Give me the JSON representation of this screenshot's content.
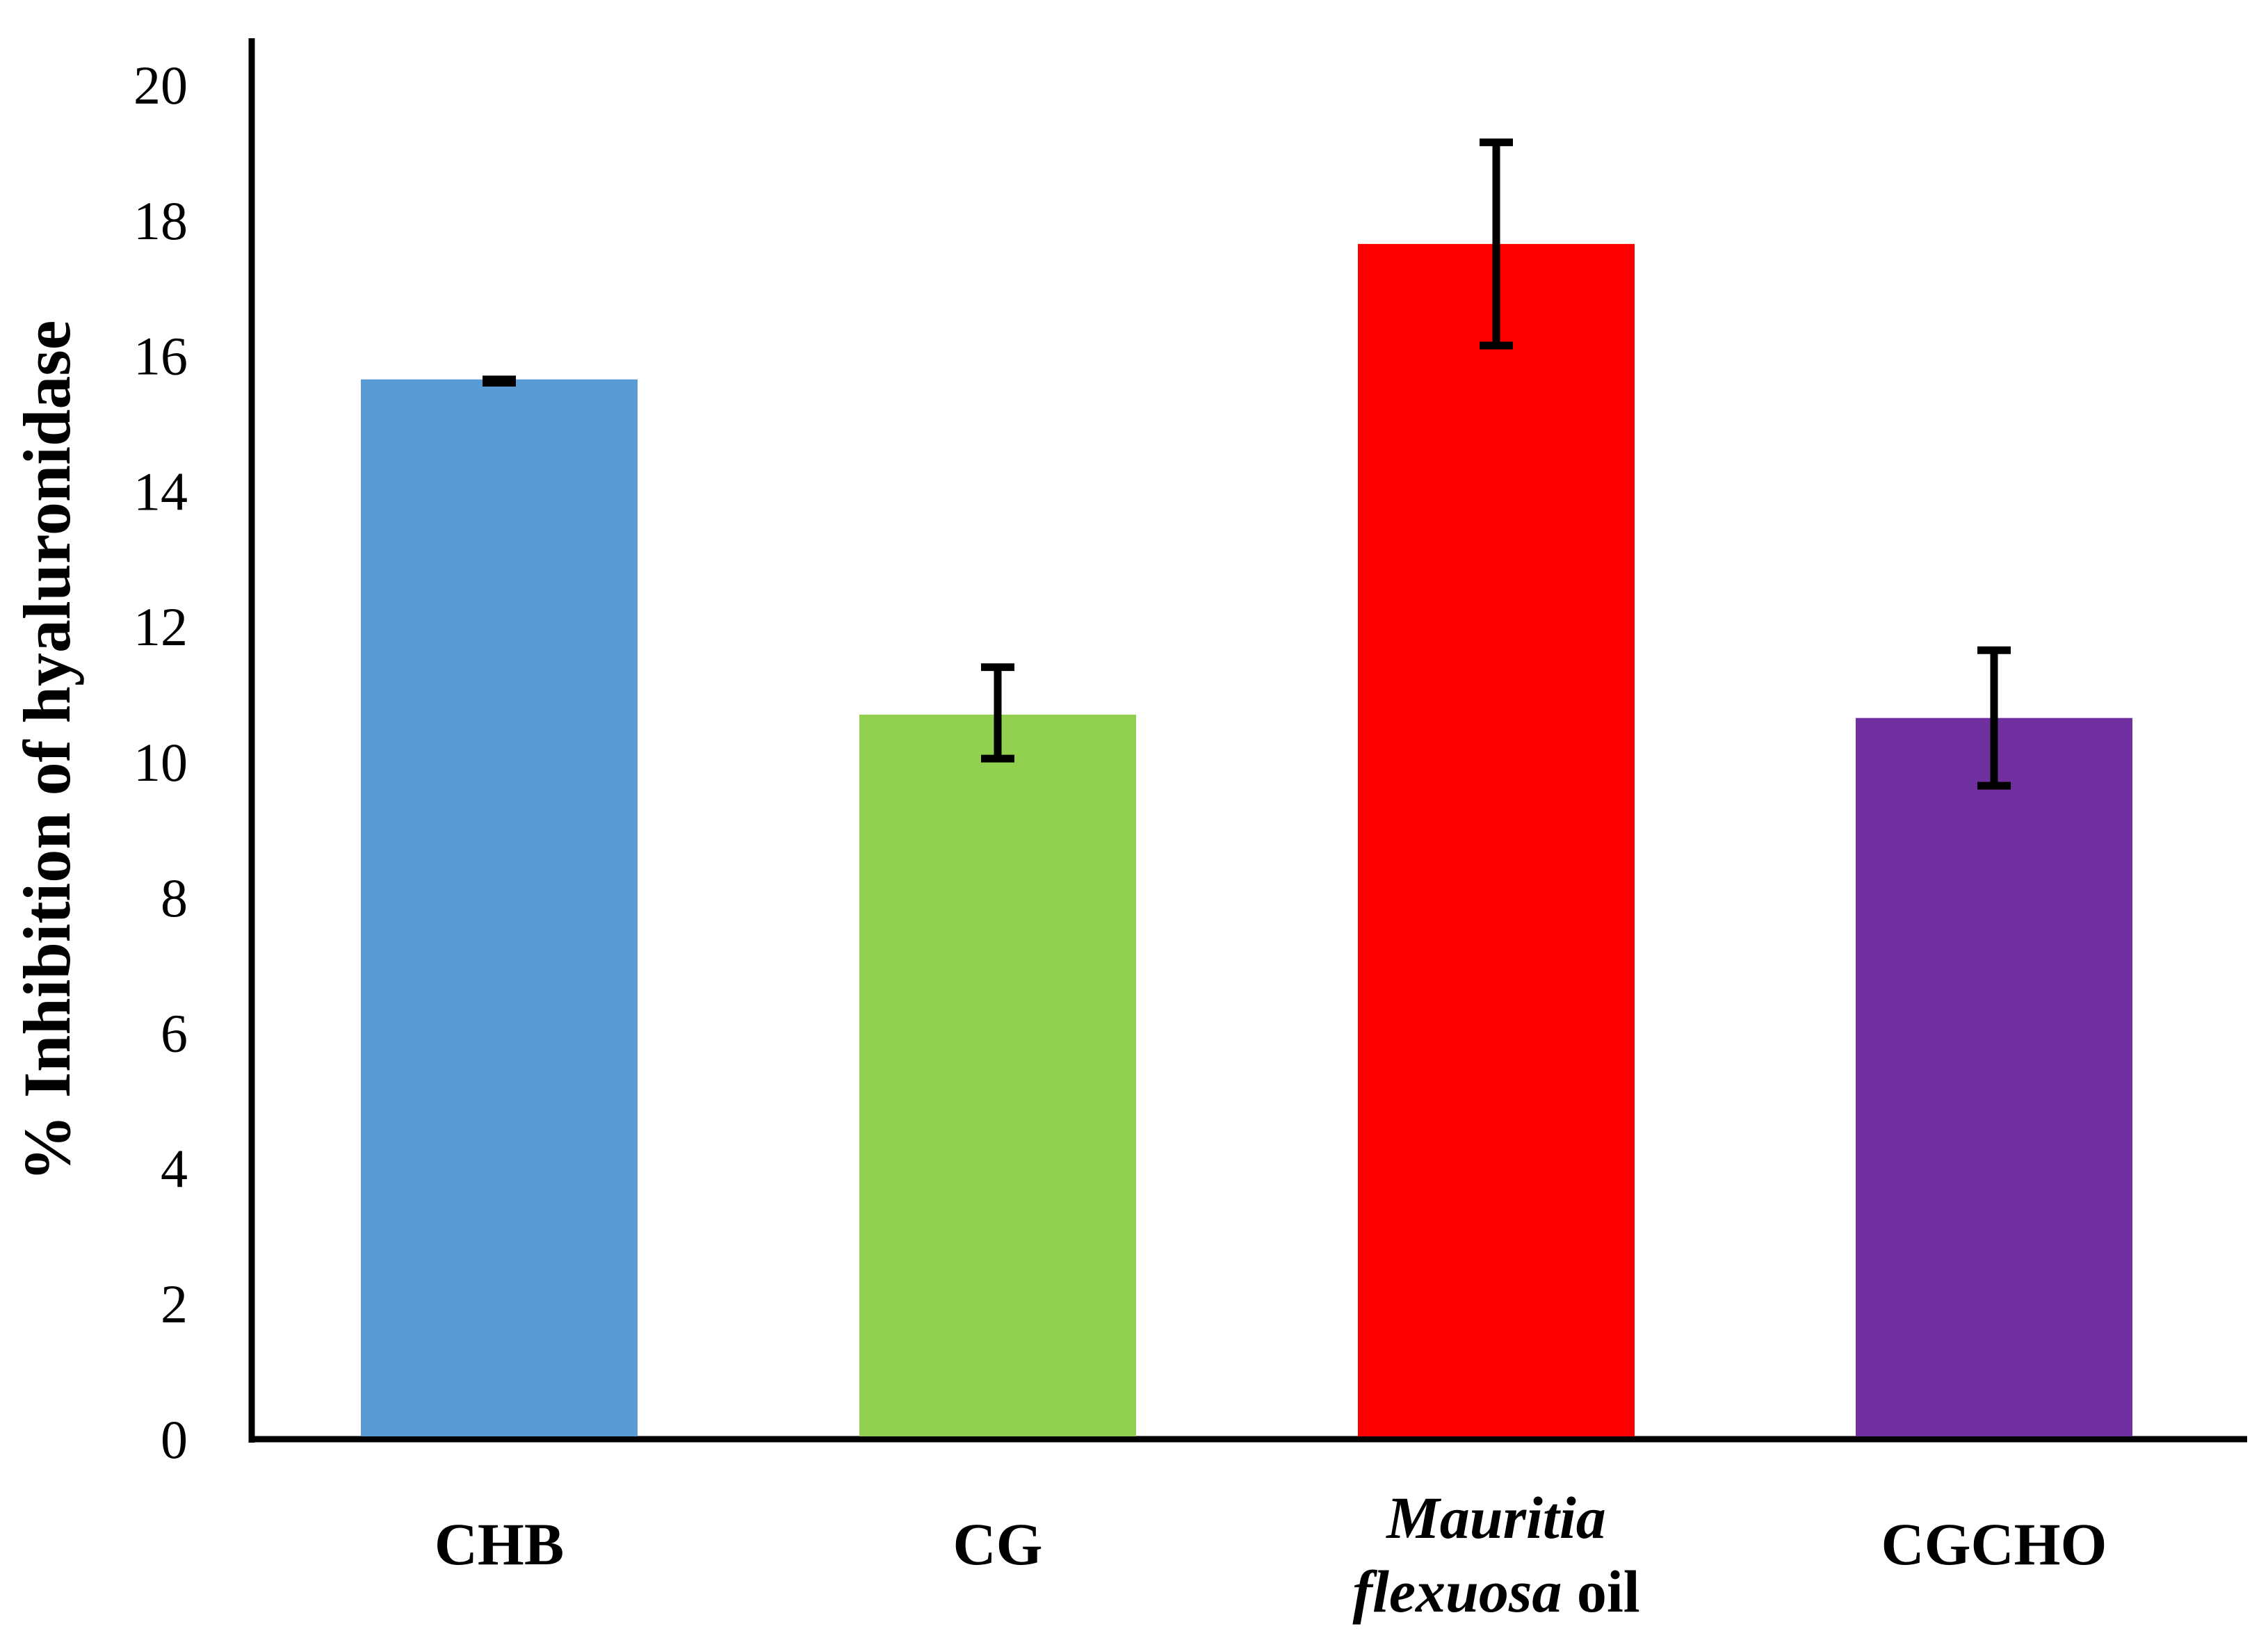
{
  "chart_data": {
    "type": "bar",
    "title": "",
    "xlabel": "",
    "ylabel": "% Inhibition of hyaluronidase",
    "ylim": [
      0,
      20
    ],
    "yticks": [
      0,
      2,
      4,
      6,
      8,
      10,
      12,
      14,
      16,
      18,
      20
    ],
    "grid": false,
    "legend": "none",
    "categories": [
      "CHB",
      "CG",
      "Mauritia flexuosa oil",
      "CGCHO"
    ],
    "category_label_parts": [
      [
        {
          "text": "CHB",
          "italic": false
        }
      ],
      [
        {
          "text": "CG",
          "italic": false
        }
      ],
      [
        {
          "text": "Mauritia",
          "italic": true
        },
        {
          "text": "flexuosa",
          "italic": true
        },
        {
          "text": "oil",
          "italic": false
        }
      ],
      [
        {
          "text": "CGCHO",
          "italic": false
        }
      ]
    ],
    "values": [
      15.65,
      10.7,
      17.65,
      10.65
    ],
    "error_low": [
      15.6,
      10.05,
      16.15,
      9.65
    ],
    "error_high": [
      15.65,
      11.4,
      19.15,
      11.65
    ],
    "colors": [
      "#5b9bd5",
      "#92d050",
      "#ff0000",
      "#7030a0"
    ]
  }
}
